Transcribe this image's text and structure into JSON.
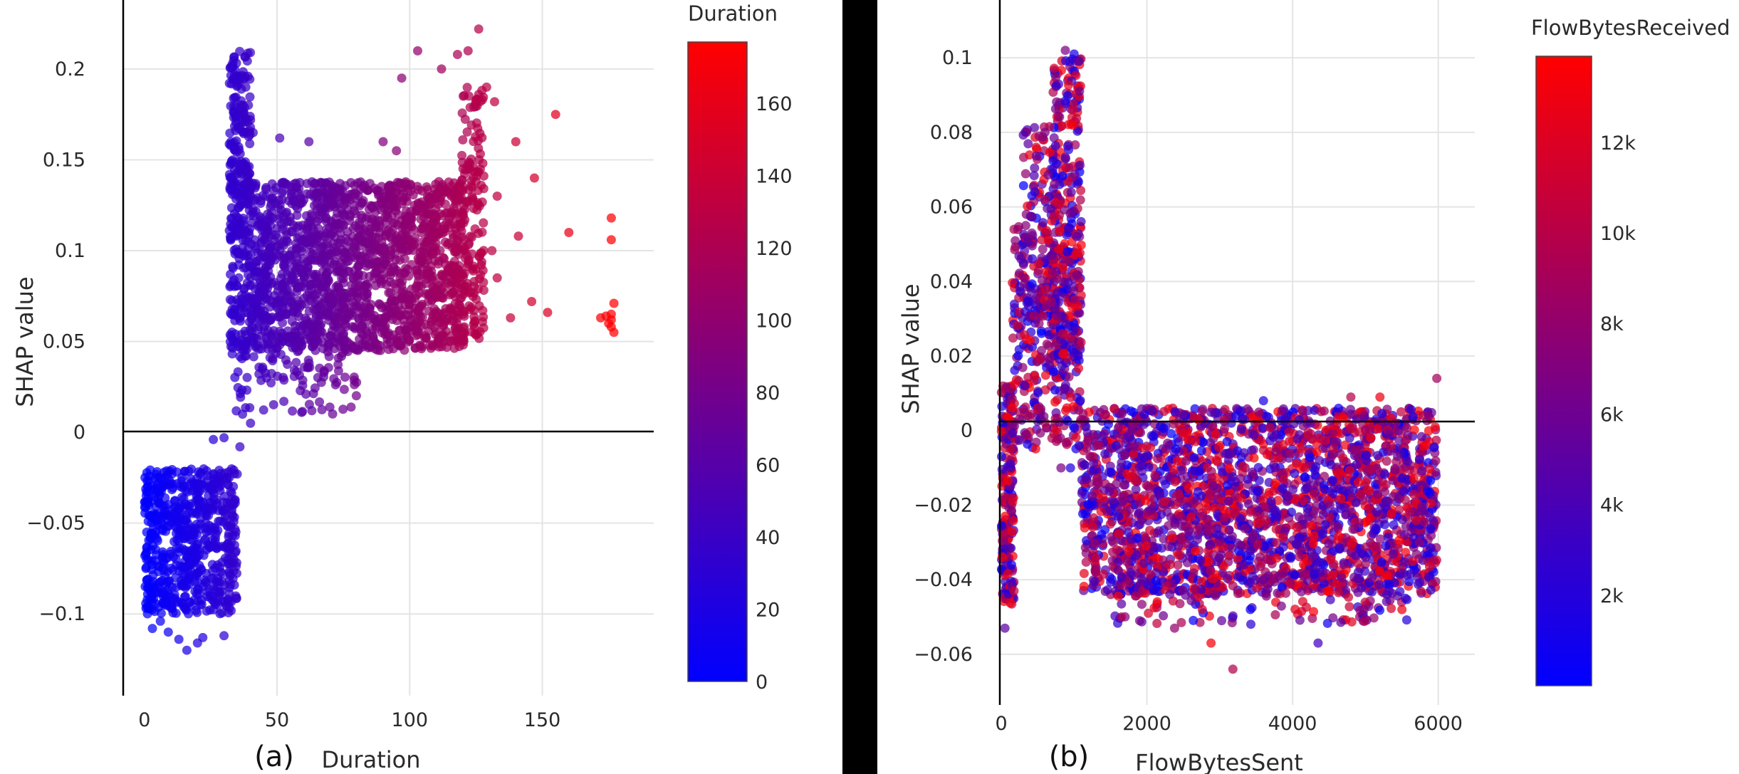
{
  "chart_data": [
    {
      "type": "scatter",
      "panel_label": "(a)",
      "title": "",
      "xlabel": "Duration",
      "ylabel": "SHAP value",
      "xlim": [
        -8,
        192
      ],
      "ylim": [
        -0.145,
        0.238
      ],
      "xticks": [
        0,
        50,
        100,
        150
      ],
      "xtick_labels": [
        "0",
        "50",
        "100",
        "150"
      ],
      "yticks": [
        -0.1,
        -0.05,
        0,
        0.05,
        0.1,
        0.15,
        0.2
      ],
      "ytick_labels": [
        "−0.1",
        "−0.05",
        "0",
        "0.05",
        "0.1",
        "0.15",
        "0.2"
      ],
      "grid": true,
      "colorbar": {
        "title": "Duration",
        "range": [
          0,
          177
        ],
        "ticks": [
          0,
          20,
          40,
          60,
          80,
          100,
          120,
          140,
          160
        ],
        "tick_labels": [
          "0",
          "20",
          "40",
          "60",
          "80",
          "100",
          "120",
          "140",
          "160"
        ],
        "colors": [
          "#0000ff",
          "#ff0000"
        ]
      },
      "color_by": "x",
      "clusters": [
        {
          "x": [
            0,
            35
          ],
          "y": [
            -0.1,
            -0.02
          ],
          "n": 650,
          "label": "Duration 0–35, negative SHAP"
        },
        {
          "x": [
            32,
            121
          ],
          "y": [
            0.045,
            0.138
          ],
          "n": 1900,
          "label": "Duration 32–121 main band"
        },
        {
          "x": [
            32,
            40
          ],
          "y": [
            0.13,
            0.21
          ],
          "n": 160,
          "label": "Duration ~33–38 upper spike"
        },
        {
          "x": [
            33,
            80
          ],
          "y": [
            0.01,
            0.05
          ],
          "n": 110,
          "label": "lower spread"
        },
        {
          "x": [
            119,
            128
          ],
          "y": [
            0.05,
            0.19
          ],
          "n": 150,
          "label": "Duration ~120–127 upper band"
        }
      ],
      "outliers": [
        [
          126,
          0.222
        ],
        [
          122,
          0.21
        ],
        [
          118,
          0.208
        ],
        [
          103,
          0.21
        ],
        [
          112,
          0.2
        ],
        [
          97,
          0.195
        ],
        [
          129,
          0.19
        ],
        [
          132,
          0.182
        ],
        [
          155,
          0.175
        ],
        [
          140,
          0.16
        ],
        [
          147,
          0.14
        ],
        [
          133,
          0.13
        ],
        [
          141,
          0.108
        ],
        [
          160,
          0.11
        ],
        [
          176,
          0.118
        ],
        [
          176,
          0.106
        ],
        [
          176,
          0.065
        ],
        [
          176,
          0.062
        ],
        [
          176,
          0.058
        ],
        [
          175,
          0.06
        ],
        [
          174,
          0.064
        ],
        [
          172,
          0.063
        ],
        [
          177,
          0.071
        ],
        [
          177,
          0.055
        ],
        [
          146,
          0.072
        ],
        [
          138,
          0.063
        ],
        [
          152,
          0.066
        ],
        [
          133,
          0.085
        ],
        [
          127,
          0.092
        ],
        [
          131,
          0.1
        ],
        [
          41,
          0.165
        ],
        [
          51,
          0.162
        ],
        [
          90,
          0.16
        ],
        [
          95,
          0.155
        ],
        [
          62,
          0.16
        ],
        [
          40,
          0.172
        ],
        [
          26,
          -0.004
        ],
        [
          36,
          -0.008
        ],
        [
          30,
          -0.003
        ],
        [
          37,
          0.01
        ],
        [
          40,
          0.005
        ],
        [
          46,
          0.03
        ],
        [
          16,
          -0.12
        ],
        [
          20,
          -0.116
        ],
        [
          22,
          -0.113
        ],
        [
          13,
          -0.114
        ],
        [
          30,
          -0.112
        ],
        [
          9,
          -0.11
        ],
        [
          6,
          -0.104
        ],
        [
          3,
          -0.108
        ]
      ]
    },
    {
      "type": "scatter",
      "panel_label": "(b)",
      "title": "",
      "xlabel": "FlowBytesSent",
      "ylabel": "SHAP value",
      "xlim": [
        -20,
        6600
      ],
      "ylim": [
        -0.0755,
        0.1155
      ],
      "xticks": [
        0,
        2000,
        4000,
        6000
      ],
      "xtick_labels": [
        "0",
        "2000",
        "4000",
        "6000"
      ],
      "yticks": [
        -0.06,
        -0.04,
        -0.02,
        0,
        0.02,
        0.04,
        0.06,
        0.08,
        0.1
      ],
      "ytick_labels": [
        "−0.06",
        "−0.04",
        "−0.02",
        "0",
        "0.02",
        "0.04",
        "0.06",
        "0.08",
        "0.1"
      ],
      "grid": true,
      "colorbar": {
        "title": "FlowBytesReceived",
        "range": [
          0,
          13900
        ],
        "ticks": [
          2000,
          4000,
          6000,
          8000,
          10000,
          12000
        ],
        "tick_labels": [
          "2k",
          "4k",
          "6k",
          "8k",
          "10k",
          "12k"
        ],
        "colors": [
          "#0000ff",
          "#ff0000"
        ]
      },
      "color_by": "random FlowBytesReceived",
      "clusters": [
        {
          "x": [
            1100,
            5980
          ],
          "y": [
            -0.044,
            0.006
          ],
          "n": 2400,
          "label": "main band"
        },
        {
          "x": [
            1500,
            5700
          ],
          "y": [
            -0.052,
            -0.038
          ],
          "n": 140,
          "label": "lower edge"
        },
        {
          "x": [
            0,
            180
          ],
          "y": [
            -0.047,
            0.012
          ],
          "n": 200,
          "label": "near zero"
        },
        {
          "x": [
            150,
            1100
          ],
          "y": [
            -0.005,
            0.055
          ],
          "n": 380,
          "label": "rising spike"
        },
        {
          "x": [
            700,
            1100
          ],
          "y": [
            0.02,
            0.1
          ],
          "n": 240,
          "label": "peak"
        },
        {
          "x": [
            300,
            800
          ],
          "y": [
            0.03,
            0.082
          ],
          "n": 120,
          "label": "left spike"
        }
      ],
      "outliers": [
        [
          3180,
          -0.064
        ],
        [
          2880,
          -0.057
        ],
        [
          4350,
          -0.057
        ],
        [
          2380,
          -0.053
        ],
        [
          2760,
          -0.048
        ],
        [
          3420,
          -0.048
        ],
        [
          4980,
          -0.048
        ],
        [
          1650,
          -0.05
        ],
        [
          2020,
          -0.049
        ],
        [
          5550,
          -0.045
        ],
        [
          1900,
          -0.051
        ],
        [
          5980,
          0.014
        ],
        [
          3600,
          0.008
        ],
        [
          4800,
          0.009
        ],
        [
          5200,
          0.009
        ],
        [
          50,
          -0.053
        ],
        [
          1000,
          0.101
        ],
        [
          880,
          0.102
        ],
        [
          940,
          0.099
        ],
        [
          600,
          0.08
        ],
        [
          520,
          0.079
        ],
        [
          480,
          0.076
        ],
        [
          420,
          0.063
        ],
        [
          600,
          0.062
        ],
        [
          950,
          -0.01
        ],
        [
          820,
          -0.01
        ]
      ]
    }
  ]
}
